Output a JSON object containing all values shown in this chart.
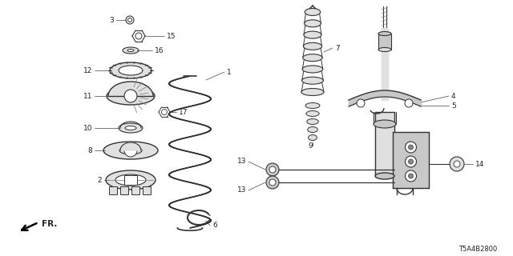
{
  "bg_color": "#ffffff",
  "part_code": "T5A4B2800",
  "fr_label": "FR.",
  "line_color": "#333333",
  "text_color": "#222222",
  "gray_fill": "#c8c8c8",
  "light_gray": "#e0e0e0",
  "dark_gray": "#888888"
}
